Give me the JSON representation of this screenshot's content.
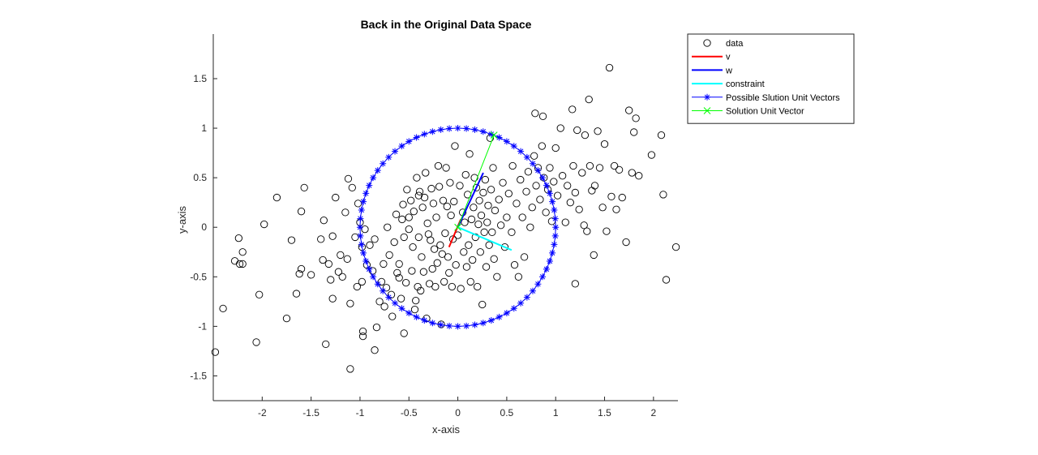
{
  "chart_data": {
    "type": "scatter",
    "title": "Back in the Original Data Space",
    "xlabel": "x-axis",
    "ylabel": "y-axis",
    "xlim": [
      -2.5,
      2.25
    ],
    "ylim": [
      -1.75,
      1.95
    ],
    "xticks": [
      -2,
      -1.5,
      -1,
      -0.5,
      0,
      0.5,
      1,
      1.5,
      2
    ],
    "xtick_labels": [
      "-2",
      "-1.5",
      "-1",
      "-0.5",
      "0",
      "0.5",
      "1",
      "1.5",
      "2"
    ],
    "yticks": [
      -1.5,
      -1,
      -0.5,
      0,
      0.5,
      1,
      1.5
    ],
    "ytick_labels": [
      "-1.5",
      "-1",
      "-0.5",
      "0",
      "0.5",
      "1",
      "1.5"
    ],
    "grid": false,
    "legend_position": "top-right",
    "legend": [
      {
        "label": "data",
        "color": "#000000",
        "style": "circle"
      },
      {
        "label": "v",
        "color": "#ff0000",
        "style": "line"
      },
      {
        "label": "w",
        "color": "#0000ff",
        "style": "line"
      },
      {
        "label": "constraint",
        "color": "#00ffff",
        "style": "line"
      },
      {
        "label": "Possible Slution Unit Vectors",
        "color": "#0000ff",
        "style": "line-star"
      },
      {
        "label": "Solution Unit Vector",
        "color": "#00ff00",
        "style": "line-x"
      }
    ],
    "series": [
      {
        "name": "data",
        "color": "#000000",
        "marker": "circle",
        "points": [
          [
            -2.48,
            -1.26
          ],
          [
            -2.4,
            -0.82
          ],
          [
            -2.28,
            -0.34
          ],
          [
            -2.23,
            -0.37
          ],
          [
            -2.2,
            -0.37
          ],
          [
            -2.24,
            -0.11
          ],
          [
            -2.2,
            -0.25
          ],
          [
            -2.06,
            -1.16
          ],
          [
            -2.03,
            -0.68
          ],
          [
            -1.98,
            0.03
          ],
          [
            -1.85,
            0.3
          ],
          [
            -1.75,
            -0.92
          ],
          [
            -1.7,
            -0.13
          ],
          [
            -1.65,
            -0.67
          ],
          [
            -1.62,
            -0.47
          ],
          [
            -1.6,
            -0.42
          ],
          [
            -1.6,
            0.16
          ],
          [
            -1.57,
            0.4
          ],
          [
            -1.5,
            -0.48
          ],
          [
            -1.4,
            -0.12
          ],
          [
            -1.38,
            -0.33
          ],
          [
            -1.37,
            0.07
          ],
          [
            -1.35,
            -1.18
          ],
          [
            -1.32,
            -0.37
          ],
          [
            -1.3,
            -0.53
          ],
          [
            -1.28,
            -0.72
          ],
          [
            -1.28,
            -0.09
          ],
          [
            -1.25,
            0.3
          ],
          [
            -1.22,
            -0.45
          ],
          [
            -1.2,
            -0.28
          ],
          [
            -1.18,
            -0.5
          ],
          [
            -1.15,
            0.15
          ],
          [
            -1.13,
            -0.32
          ],
          [
            -1.12,
            0.49
          ],
          [
            -1.1,
            -1.43
          ],
          [
            -1.1,
            -0.77
          ],
          [
            -1.08,
            0.4
          ],
          [
            -1.05,
            -0.1
          ],
          [
            -1.03,
            -0.6
          ],
          [
            -1.02,
            0.24
          ],
          [
            -1.0,
            0.05
          ],
          [
            -0.98,
            -0.2
          ],
          [
            -0.98,
            -0.55
          ],
          [
            -0.97,
            -1.05
          ],
          [
            -0.97,
            -1.1
          ],
          [
            -0.95,
            -0.02
          ],
          [
            -0.93,
            -0.38
          ],
          [
            -0.9,
            -0.18
          ],
          [
            -0.87,
            -0.44
          ],
          [
            -0.85,
            -1.24
          ],
          [
            -0.85,
            -0.12
          ],
          [
            -0.83,
            -1.01
          ],
          [
            -0.8,
            -0.75
          ],
          [
            -0.78,
            -0.55
          ],
          [
            -0.76,
            -0.37
          ],
          [
            -0.75,
            -0.8
          ],
          [
            -0.73,
            -0.61
          ],
          [
            -0.72,
            0.0
          ],
          [
            -0.7,
            -0.28
          ],
          [
            -0.68,
            -0.68
          ],
          [
            -0.67,
            -0.9
          ],
          [
            -0.65,
            -0.15
          ],
          [
            -0.63,
            0.13
          ],
          [
            -0.62,
            -0.46
          ],
          [
            -0.6,
            -0.51
          ],
          [
            -0.6,
            -0.37
          ],
          [
            -0.58,
            -0.72
          ],
          [
            -0.57,
            0.08
          ],
          [
            -0.56,
            0.23
          ],
          [
            -0.55,
            -1.07
          ],
          [
            -0.55,
            -0.1
          ],
          [
            -0.53,
            -0.56
          ],
          [
            -0.52,
            0.38
          ],
          [
            -0.5,
            0.1
          ],
          [
            -0.5,
            -0.02
          ],
          [
            -0.48,
            0.27
          ],
          [
            -0.47,
            -0.44
          ],
          [
            -0.46,
            -0.2
          ],
          [
            -0.45,
            0.16
          ],
          [
            -0.44,
            -0.83
          ],
          [
            -0.43,
            -0.74
          ],
          [
            -0.42,
            0.5
          ],
          [
            -0.41,
            -0.6
          ],
          [
            -0.4,
            -0.1
          ],
          [
            -0.4,
            0.32
          ],
          [
            -0.39,
            0.36
          ],
          [
            -0.38,
            -0.64
          ],
          [
            -0.37,
            -0.3
          ],
          [
            -0.36,
            0.2
          ],
          [
            -0.35,
            -0.45
          ],
          [
            -0.34,
            0.3
          ],
          [
            -0.33,
            0.55
          ],
          [
            -0.32,
            -0.92
          ],
          [
            -0.31,
            0.04
          ],
          [
            -0.3,
            -0.07
          ],
          [
            -0.29,
            -0.57
          ],
          [
            -0.28,
            -0.13
          ],
          [
            -0.27,
            0.39
          ],
          [
            -0.26,
            -0.42
          ],
          [
            -0.25,
            0.24
          ],
          [
            -0.24,
            -0.22
          ],
          [
            -0.23,
            -0.6
          ],
          [
            -0.22,
            0.1
          ],
          [
            -0.21,
            -0.36
          ],
          [
            -0.2,
            0.62
          ],
          [
            -0.19,
            0.41
          ],
          [
            -0.18,
            -0.18
          ],
          [
            -0.17,
            -0.98
          ],
          [
            -0.16,
            -0.27
          ],
          [
            -0.15,
            0.27
          ],
          [
            -0.14,
            -0.55
          ],
          [
            -0.13,
            -0.06
          ],
          [
            -0.12,
            0.6
          ],
          [
            -0.11,
            0.21
          ],
          [
            -0.1,
            -0.3
          ],
          [
            -0.09,
            -0.46
          ],
          [
            -0.08,
            0.45
          ],
          [
            -0.07,
            0.12
          ],
          [
            -0.06,
            -0.6
          ],
          [
            -0.05,
            -0.12
          ],
          [
            -0.04,
            0.26
          ],
          [
            -0.03,
            0.82
          ],
          [
            -0.02,
            -0.38
          ],
          [
            0.0,
            -0.08
          ],
          [
            0.02,
            0.42
          ],
          [
            0.03,
            -0.62
          ],
          [
            0.05,
            0.15
          ],
          [
            0.06,
            -0.25
          ],
          [
            0.07,
            0.05
          ],
          [
            0.08,
            0.53
          ],
          [
            0.09,
            -0.4
          ],
          [
            0.1,
            0.33
          ],
          [
            0.11,
            -0.18
          ],
          [
            0.12,
            0.74
          ],
          [
            0.13,
            -0.55
          ],
          [
            0.14,
            0.08
          ],
          [
            0.15,
            -0.33
          ],
          [
            0.16,
            0.2
          ],
          [
            0.17,
            0.5
          ],
          [
            0.18,
            -0.1
          ],
          [
            0.19,
            0.4
          ],
          [
            0.2,
            -0.6
          ],
          [
            0.21,
            0.03
          ],
          [
            0.22,
            0.27
          ],
          [
            0.23,
            -0.25
          ],
          [
            0.24,
            0.12
          ],
          [
            0.25,
            -0.78
          ],
          [
            0.26,
            0.35
          ],
          [
            0.27,
            -0.05
          ],
          [
            0.28,
            0.48
          ],
          [
            0.29,
            -0.4
          ],
          [
            0.3,
            0.05
          ],
          [
            0.31,
            0.22
          ],
          [
            0.32,
            -0.18
          ],
          [
            0.33,
            0.9
          ],
          [
            0.34,
            0.38
          ],
          [
            0.35,
            -0.05
          ],
          [
            0.36,
            0.6
          ],
          [
            0.37,
            -0.32
          ],
          [
            0.38,
            0.17
          ],
          [
            0.4,
            -0.5
          ],
          [
            0.42,
            0.28
          ],
          [
            0.44,
            0.02
          ],
          [
            0.46,
            0.45
          ],
          [
            0.48,
            -0.2
          ],
          [
            0.5,
            0.1
          ],
          [
            0.52,
            0.34
          ],
          [
            0.55,
            -0.05
          ],
          [
            0.56,
            0.62
          ],
          [
            0.58,
            -0.38
          ],
          [
            0.6,
            0.24
          ],
          [
            0.62,
            -0.5
          ],
          [
            0.64,
            0.48
          ],
          [
            0.66,
            0.1
          ],
          [
            0.68,
            -0.3
          ],
          [
            0.7,
            0.36
          ],
          [
            0.72,
            0.56
          ],
          [
            0.74,
            0.0
          ],
          [
            0.76,
            0.2
          ],
          [
            0.78,
            0.72
          ],
          [
            0.79,
            1.15
          ],
          [
            0.8,
            0.42
          ],
          [
            0.82,
            0.6
          ],
          [
            0.84,
            0.28
          ],
          [
            0.86,
            0.82
          ],
          [
            0.87,
            1.12
          ],
          [
            0.88,
            0.5
          ],
          [
            0.9,
            0.15
          ],
          [
            0.92,
            0.38
          ],
          [
            0.94,
            0.6
          ],
          [
            0.96,
            0.06
          ],
          [
            0.98,
            0.46
          ],
          [
            1.0,
            0.8
          ],
          [
            1.02,
            0.32
          ],
          [
            1.05,
            1.0
          ],
          [
            1.07,
            0.52
          ],
          [
            1.1,
            0.05
          ],
          [
            1.12,
            0.42
          ],
          [
            1.15,
            0.25
          ],
          [
            1.17,
            1.19
          ],
          [
            1.18,
            0.62
          ],
          [
            1.2,
            -0.57
          ],
          [
            1.2,
            0.35
          ],
          [
            1.22,
            0.98
          ],
          [
            1.24,
            0.18
          ],
          [
            1.27,
            0.55
          ],
          [
            1.29,
            0.02
          ],
          [
            1.3,
            0.93
          ],
          [
            1.32,
            -0.04
          ],
          [
            1.34,
            1.29
          ],
          [
            1.35,
            0.62
          ],
          [
            1.37,
            0.37
          ],
          [
            1.39,
            -0.28
          ],
          [
            1.4,
            0.42
          ],
          [
            1.43,
            0.97
          ],
          [
            1.45,
            0.6
          ],
          [
            1.48,
            0.2
          ],
          [
            1.5,
            0.84
          ],
          [
            1.52,
            -0.04
          ],
          [
            1.55,
            1.61
          ],
          [
            1.57,
            0.31
          ],
          [
            1.6,
            0.62
          ],
          [
            1.62,
            0.18
          ],
          [
            1.65,
            0.58
          ],
          [
            1.68,
            0.3
          ],
          [
            1.72,
            -0.15
          ],
          [
            1.75,
            1.18
          ],
          [
            1.78,
            0.55
          ],
          [
            1.8,
            0.96
          ],
          [
            1.82,
            1.1
          ],
          [
            1.85,
            0.52
          ],
          [
            1.98,
            0.73
          ],
          [
            2.08,
            0.93
          ],
          [
            2.1,
            0.33
          ],
          [
            2.13,
            -0.53
          ],
          [
            2.23,
            -0.2
          ]
        ]
      },
      {
        "name": "v",
        "color": "#ff0000",
        "points": [
          [
            -0.09,
            -0.2
          ],
          [
            0.03,
            0.08
          ]
        ]
      },
      {
        "name": "w",
        "color": "#0000ff",
        "points": [
          [
            0.0,
            0.0
          ],
          [
            0.26,
            0.55
          ]
        ]
      },
      {
        "name": "constraint",
        "color": "#00ffff",
        "points": [
          [
            0.0,
            0.0
          ],
          [
            0.55,
            -0.23
          ]
        ]
      },
      {
        "name": "Possible Slution Unit Vectors",
        "color": "#0000ff",
        "marker": "star",
        "shape": "unit-circle",
        "count": 72
      },
      {
        "name": "Solution Unit Vector",
        "color": "#00ff00",
        "marker": "x",
        "points": [
          [
            0.0,
            0.0
          ],
          [
            0.37,
            0.93
          ]
        ]
      }
    ]
  }
}
